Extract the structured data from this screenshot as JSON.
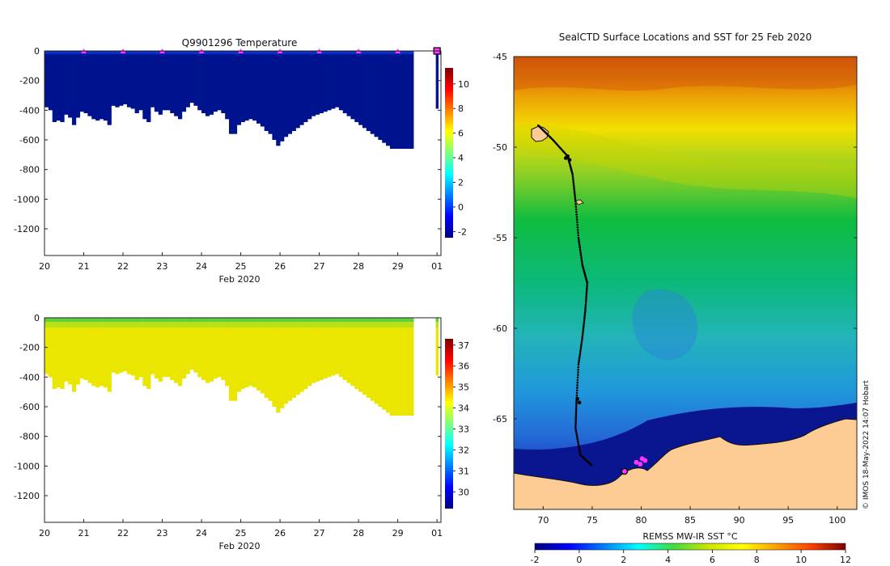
{
  "chart_data": [
    {
      "type": "heatmap",
      "panel": "temperature-section",
      "title": "Q9901296  Temperature",
      "xlabel": "Feb 2020",
      "x_tick_labels": [
        "20",
        "21",
        "22",
        "23",
        "24",
        "25",
        "26",
        "27",
        "28",
        "29",
        "01"
      ],
      "x_range_days": [
        20,
        30.1
      ],
      "y_range": [
        -1380,
        0
      ],
      "y_ticks": [
        0,
        -200,
        -400,
        -600,
        -800,
        -1000,
        -1200
      ],
      "colorbar": {
        "min": -2.5,
        "max": 11.3,
        "ticks": [
          -2,
          0,
          2,
          4,
          6,
          8,
          10
        ]
      },
      "profile_marker_days": [
        21,
        22,
        23,
        24,
        25,
        26,
        27,
        28,
        29
      ],
      "current_marker_day": 30,
      "dive_depths": [
        -380,
        -400,
        -480,
        -470,
        -480,
        -430,
        -450,
        -500,
        -450,
        -410,
        -420,
        -440,
        -460,
        -470,
        -460,
        -470,
        -500,
        -370,
        -380,
        -370,
        -360,
        -380,
        -390,
        -420,
        -400,
        -460,
        -480,
        -380,
        -410,
        -430,
        -400,
        -400,
        -420,
        -440,
        -460,
        -410,
        -380,
        -350,
        -370,
        -400,
        -420,
        -440,
        -430,
        -410,
        -400,
        -420,
        -460,
        -560,
        -560,
        -500,
        -480,
        -470,
        -460,
        -470,
        -490,
        -510,
        -540,
        -560,
        -600,
        -640,
        -610,
        -580,
        -560,
        -540,
        -520,
        -500,
        -480,
        -460,
        -440,
        -430,
        -420,
        -410,
        -400,
        -390,
        -380,
        -400,
        -420,
        -440,
        -460,
        -480,
        -500,
        -520,
        -540,
        -560,
        -580,
        -600,
        -620,
        -640,
        -660,
        -660,
        -660,
        -660,
        -660,
        -660
      ],
      "value_range_degC": [
        -1.8,
        2.0
      ]
    },
    {
      "type": "heatmap",
      "panel": "salinity-section",
      "title": "",
      "xlabel": "Feb 2020",
      "x_tick_labels": [
        "20",
        "21",
        "22",
        "23",
        "24",
        "25",
        "26",
        "27",
        "28",
        "29",
        "01"
      ],
      "x_range_days": [
        20,
        30.1
      ],
      "y_range": [
        -1380,
        0
      ],
      "y_ticks": [
        0,
        -200,
        -400,
        -600,
        -800,
        -1000,
        -1200
      ],
      "colorbar": {
        "min": 29.2,
        "max": 37.3,
        "ticks": [
          30,
          31,
          32,
          33,
          34,
          35,
          36,
          37
        ]
      },
      "value_range_psu": [
        33.7,
        34.7
      ]
    },
    {
      "type": "heatmap",
      "panel": "sst-map",
      "title": "SealCTD Surface Locations and SST for 25 Feb 2020",
      "xlim": [
        67,
        102
      ],
      "ylim": [
        -70,
        -45
      ],
      "x_ticks": [
        70,
        75,
        80,
        85,
        90,
        95,
        100
      ],
      "y_ticks": [
        -45,
        -50,
        -55,
        -60,
        -65
      ],
      "colorbar": {
        "label": "REMSS MW-IR SST °C",
        "min": -2,
        "max": 12,
        "ticks": [
          -2,
          0,
          2,
          4,
          6,
          8,
          10,
          12
        ]
      },
      "track": [
        [
          69.5,
          -48.8
        ],
        [
          71,
          -49.6
        ],
        [
          72.5,
          -50.5
        ],
        [
          73,
          -51.5
        ],
        [
          73.3,
          -53
        ],
        [
          73.6,
          -55
        ],
        [
          74.0,
          -56.5
        ],
        [
          74.5,
          -57.5
        ],
        [
          74.3,
          -59
        ],
        [
          74.0,
          -60.5
        ],
        [
          73.6,
          -62
        ],
        [
          73.4,
          -64
        ],
        [
          73.3,
          -65.5
        ],
        [
          73.8,
          -67
        ],
        [
          75.0,
          -67.6
        ]
      ],
      "surface_locations": [
        [
          79.5,
          -67.4
        ],
        [
          80.1,
          -67.2
        ],
        [
          79.9,
          -67.5
        ],
        [
          80.4,
          -67.3
        ]
      ],
      "current_location": [
        78.3,
        -67.9
      ]
    }
  ],
  "credit": "© IMOS 18-May-2022 14:07 Hobart"
}
